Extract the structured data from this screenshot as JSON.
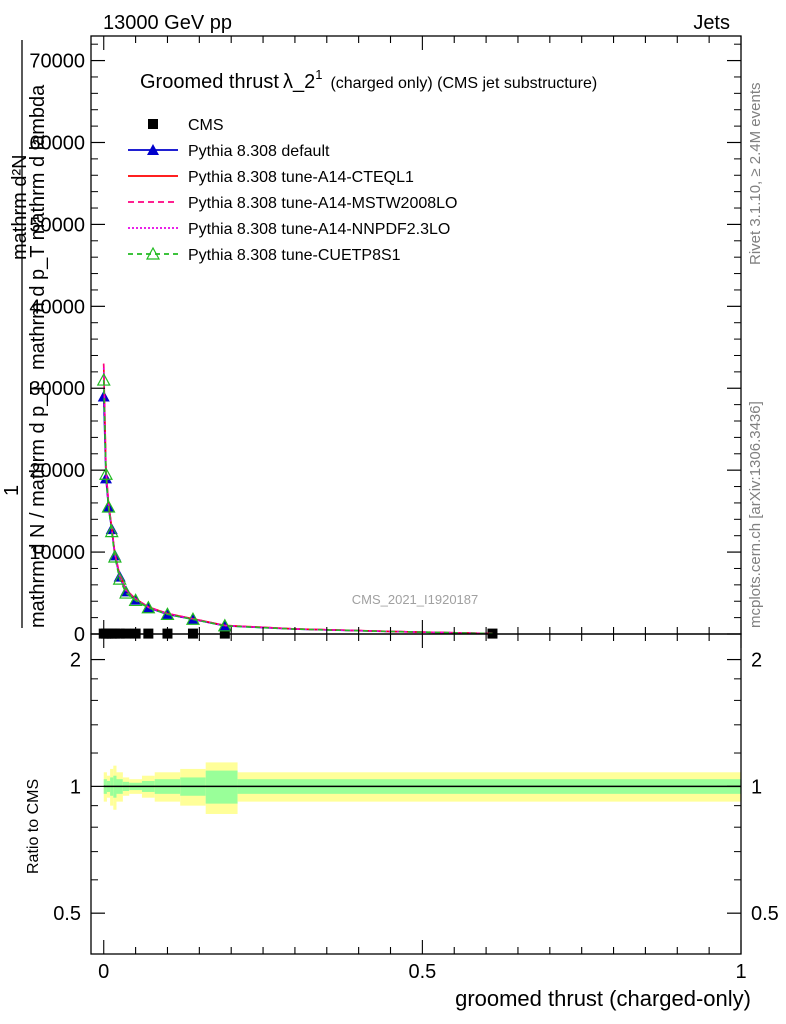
{
  "header": {
    "energy_label": "13000 GeV pp",
    "category_label": "Jets"
  },
  "side_labels": {
    "rivet": "Rivet 3.1.10, ≥ 2.4M events",
    "mcplots": "mcplots.cern.ch [arXiv:1306.3436]"
  },
  "watermark": "CMS_2021_I1920187",
  "chart_data": [
    {
      "type": "line",
      "title_main": "Groomed thrust",
      "title_lambda": "λ_2",
      "title_sup": "1",
      "title_rest": "(charged only) (CMS jet substructure)",
      "ylabel_top": "mathrm d²N",
      "ylabel_top2": "mathrm d p_T mathrm d lambda",
      "ylabel_one": "1",
      "ylabel_bottom": "mathrm d N / mathrm d p_T",
      "ylim": [
        0,
        73000
      ],
      "xlim": [
        -0.02,
        1.0
      ],
      "y_ticks": [
        "0",
        "10000",
        "20000",
        "30000",
        "40000",
        "50000",
        "60000",
        "70000"
      ],
      "legend_position": "top-left",
      "series": [
        {
          "name": "CMS",
          "color": "#000000",
          "marker": "square",
          "x": [
            0.0,
            0.0035,
            0.0075,
            0.0125,
            0.0175,
            0.025,
            0.035,
            0.05,
            0.07,
            0.1,
            0.14,
            0.19,
            0.61
          ],
          "y": [
            50,
            50,
            50,
            50,
            50,
            50,
            50,
            50,
            50,
            50,
            50,
            50,
            50
          ]
        },
        {
          "name": "Pythia 8.308 default",
          "color": "#0000cc",
          "marker": "triangle",
          "x": [
            0.0,
            0.0035,
            0.0075,
            0.0125,
            0.0175,
            0.025,
            0.035,
            0.05,
            0.07,
            0.1,
            0.14,
            0.19,
            0.3,
            0.45,
            0.61
          ],
          "y": [
            29000,
            19000,
            15500,
            12800,
            9600,
            7000,
            5200,
            4200,
            3200,
            2400,
            1800,
            1000,
            600,
            300,
            50
          ]
        },
        {
          "name": "Pythia 8.308 tune-A14-CTEQL1",
          "color": "#ff0000",
          "dash": "",
          "x": [
            0.0,
            0.0035,
            0.0075,
            0.0125,
            0.0175,
            0.025,
            0.035,
            0.05,
            0.07,
            0.1,
            0.14,
            0.19,
            0.3,
            0.45,
            0.61
          ],
          "y": [
            33000,
            20000,
            16000,
            13000,
            9800,
            7200,
            5400,
            4300,
            3300,
            2500,
            1850,
            1050,
            620,
            320,
            50
          ]
        },
        {
          "name": "Pythia 8.308 tune-A14-MSTW2008LO",
          "color": "#ff0080",
          "dash": "6,4",
          "x": [
            0.0,
            0.0035,
            0.0075,
            0.0125,
            0.0175,
            0.025,
            0.035,
            0.05,
            0.07,
            0.1,
            0.14,
            0.19,
            0.3,
            0.45,
            0.61
          ],
          "y": [
            33000,
            20000,
            16000,
            13000,
            9800,
            7200,
            5400,
            4300,
            3300,
            2500,
            1850,
            1050,
            620,
            320,
            50
          ]
        },
        {
          "name": "Pythia 8.308 tune-A14-NNPDF2.3LO",
          "color": "#e600e6",
          "dash": "2,2",
          "x": [
            0.0,
            0.0035,
            0.0075,
            0.0125,
            0.0175,
            0.025,
            0.035,
            0.05,
            0.07,
            0.1,
            0.14,
            0.19,
            0.3,
            0.45,
            0.61
          ],
          "y": [
            32500,
            19800,
            15800,
            12900,
            9700,
            7100,
            5300,
            4250,
            3250,
            2450,
            1820,
            1030,
            610,
            310,
            50
          ]
        },
        {
          "name": "Pythia 8.308 tune-CUETP8S1",
          "color": "#22bb22",
          "dash": "5,4",
          "marker": "open-triangle",
          "x": [
            0.0,
            0.0035,
            0.0075,
            0.0125,
            0.0175,
            0.025,
            0.035,
            0.05,
            0.07,
            0.1,
            0.14,
            0.19,
            0.3,
            0.45,
            0.61
          ],
          "y": [
            31000,
            19500,
            15500,
            12500,
            9400,
            6700,
            5000,
            4100,
            3200,
            2400,
            1800,
            1000,
            600,
            300,
            50
          ]
        }
      ]
    },
    {
      "type": "area",
      "ylabel": "Ratio to CMS",
      "xlabel": "groomed thrust (charged-only)",
      "xlim": [
        -0.02,
        1.0
      ],
      "ylim": [
        0.4,
        2.3
      ],
      "x_ticks": [
        "0",
        "0.5",
        "1"
      ],
      "y_ticks": [
        "0.5",
        "1",
        "2"
      ],
      "reference_line": 1.0,
      "bins": {
        "edges": [
          0.0,
          0.005,
          0.01,
          0.015,
          0.02,
          0.03,
          0.04,
          0.06,
          0.08,
          0.12,
          0.16,
          0.21,
          1.0
        ],
        "inner_half_width": [
          0.04,
          0.03,
          0.05,
          0.06,
          0.04,
          0.025,
          0.02,
          0.03,
          0.04,
          0.05,
          0.09,
          0.04
        ],
        "outer_half_width": [
          0.08,
          0.06,
          0.1,
          0.12,
          0.08,
          0.05,
          0.04,
          0.06,
          0.08,
          0.1,
          0.14,
          0.08
        ]
      }
    }
  ]
}
